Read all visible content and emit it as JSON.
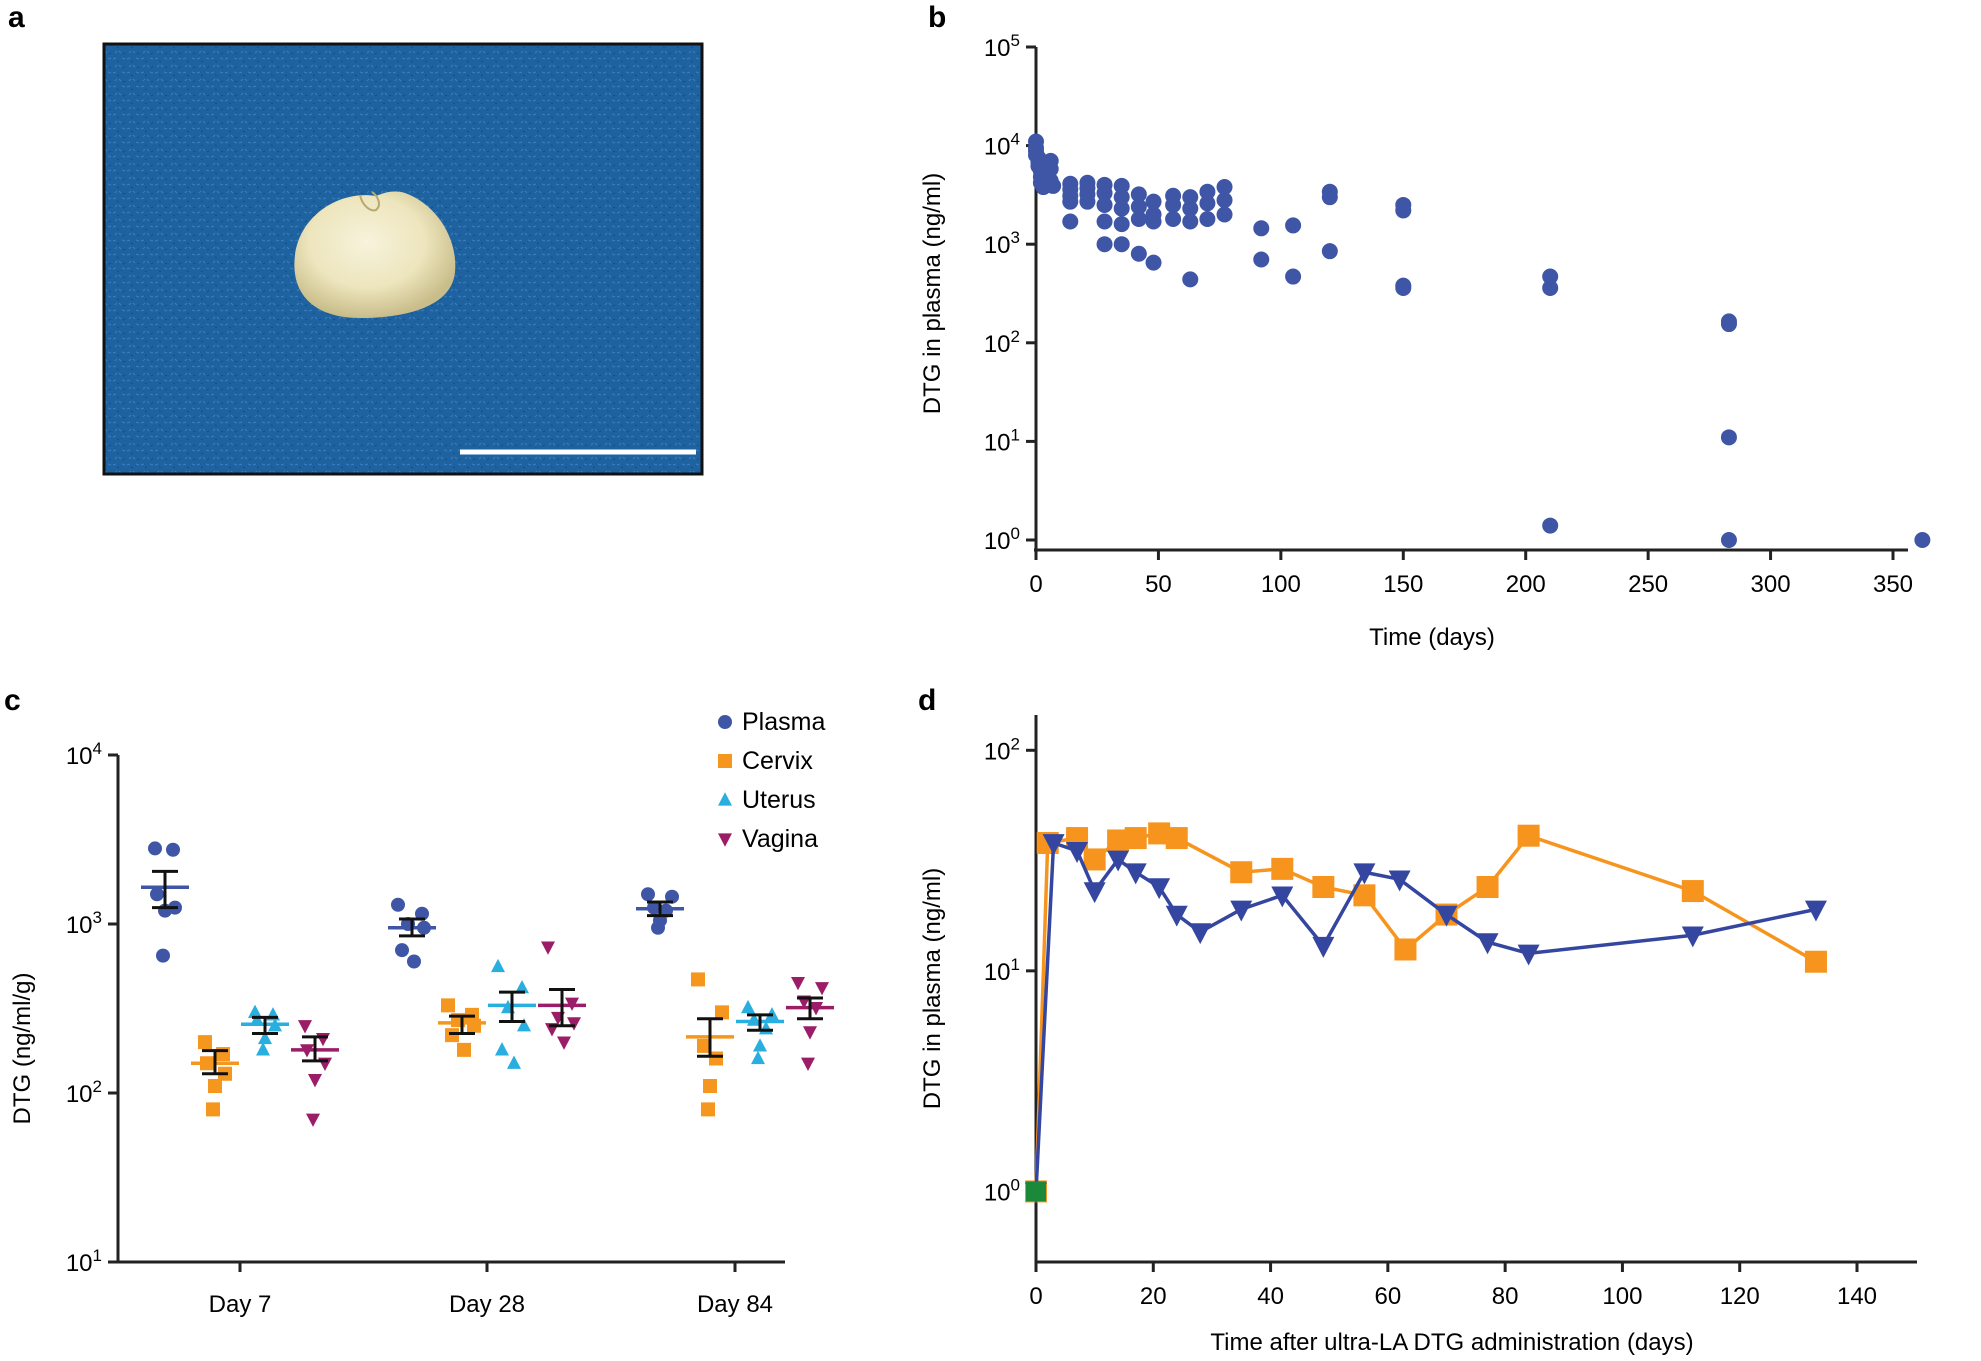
{
  "panel_labels": [
    "a",
    "b",
    "c",
    "d"
  ],
  "photo": {
    "description_name": "specimen-photo",
    "scale_bar": true
  },
  "colors": {
    "plasma": "#3f56a6",
    "cervix": "#f5961f",
    "uterus": "#29aee0",
    "vagina": "#9c1d67",
    "panel_d_orange": "#f7941d",
    "panel_d_blue": "#3446a0",
    "panel_d_start": "#1a8a3a",
    "photo_bg": "#1f62a0"
  },
  "chart_data": [
    {
      "panel": "b",
      "type": "scatter",
      "xlabel": "Time (days)",
      "ylabel": "DTG in plasma (ng/ml)",
      "xlim": [
        0,
        365
      ],
      "ylim_log10": [
        0,
        5
      ],
      "yscale": "log",
      "xticks": [
        "0",
        "50",
        "100",
        "150",
        "200",
        "250",
        "300",
        "350"
      ],
      "ytick_base": "10",
      "ytick_exps": [
        "0",
        "1",
        "2",
        "3",
        "4",
        "5"
      ],
      "points": [
        [
          0,
          11000
        ],
        [
          0,
          9500
        ],
        [
          0,
          8800
        ],
        [
          0,
          8000
        ],
        [
          1,
          7500
        ],
        [
          1,
          6800
        ],
        [
          1,
          6200
        ],
        [
          2,
          5500
        ],
        [
          2,
          4800
        ],
        [
          2,
          4200
        ],
        [
          3,
          3800
        ],
        [
          4,
          5200
        ],
        [
          5,
          4600
        ],
        [
          5,
          4000
        ],
        [
          6,
          7000
        ],
        [
          6,
          5800
        ],
        [
          6,
          4400
        ],
        [
          7,
          3900
        ],
        [
          14,
          4100
        ],
        [
          14,
          3600
        ],
        [
          14,
          3100
        ],
        [
          14,
          2700
        ],
        [
          14,
          1700
        ],
        [
          21,
          4200
        ],
        [
          21,
          3700
        ],
        [
          21,
          3200
        ],
        [
          21,
          2700
        ],
        [
          28,
          4000
        ],
        [
          28,
          3300
        ],
        [
          28,
          2500
        ],
        [
          28,
          1700
        ],
        [
          28,
          1000
        ],
        [
          35,
          3900
        ],
        [
          35,
          3000
        ],
        [
          35,
          2300
        ],
        [
          35,
          1600
        ],
        [
          35,
          1000
        ],
        [
          42,
          3200
        ],
        [
          42,
          2400
        ],
        [
          42,
          1800
        ],
        [
          42,
          800
        ],
        [
          48,
          2700
        ],
        [
          48,
          2000
        ],
        [
          48,
          1700
        ],
        [
          48,
          650
        ],
        [
          56,
          3100
        ],
        [
          56,
          2500
        ],
        [
          56,
          1800
        ],
        [
          63,
          3000
        ],
        [
          63,
          2300
        ],
        [
          63,
          1700
        ],
        [
          63,
          440
        ],
        [
          70,
          3400
        ],
        [
          70,
          2600
        ],
        [
          70,
          1800
        ],
        [
          77,
          3800
        ],
        [
          77,
          2800
        ],
        [
          77,
          2000
        ],
        [
          92,
          1450
        ],
        [
          92,
          700
        ],
        [
          105,
          1550
        ],
        [
          105,
          470
        ],
        [
          120,
          3400
        ],
        [
          120,
          3000
        ],
        [
          120,
          850
        ],
        [
          150,
          2500
        ],
        [
          150,
          2200
        ],
        [
          150,
          380
        ],
        [
          150,
          360
        ],
        [
          210,
          470
        ],
        [
          210,
          360
        ],
        [
          210,
          1.4
        ],
        [
          283,
          165
        ],
        [
          283,
          155
        ],
        [
          283,
          11
        ],
        [
          283,
          1.0
        ],
        [
          362,
          1.0
        ]
      ]
    },
    {
      "panel": "c",
      "type": "scatter",
      "xlabel": "",
      "ylabel": "DTG (ng/ml/g)",
      "yscale": "log",
      "ylim_log10": [
        1,
        4
      ],
      "categories": [
        "Day 7",
        "Day 28",
        "Day 84"
      ],
      "ytick_base": "10",
      "ytick_exps": [
        "1",
        "2",
        "3",
        "4"
      ],
      "legend": [
        "Plasma",
        "Cervix",
        "Uterus",
        "Vagina"
      ],
      "legend_position": "top-right",
      "series": [
        {
          "name": "Plasma",
          "marker": "circle",
          "groups": [
            {
              "values": [
                2800,
                2750,
                1500,
                1250,
                1200,
                650
              ],
              "mean": 1650,
              "sem_low": 1250,
              "sem_high": 2050
            },
            {
              "values": [
                1300,
                1150,
                1000,
                950,
                700,
                600
              ],
              "mean": 950,
              "sem_low": 850,
              "sem_high": 1070
            },
            {
              "values": [
                1500,
                1450,
                1250,
                1200,
                1050,
                950
              ],
              "mean": 1230,
              "sem_low": 1120,
              "sem_high": 1350
            }
          ]
        },
        {
          "name": "Cervix",
          "marker": "square",
          "groups": [
            {
              "values": [
                200,
                170,
                150,
                130,
                110,
                80
              ],
              "mean": 150,
              "sem_low": 130,
              "sem_high": 178
            },
            {
              "values": [
                330,
                290,
                270,
                250,
                220,
                180
              ],
              "mean": 260,
              "sem_low": 225,
              "sem_high": 285
            },
            {
              "values": [
                470,
                300,
                190,
                160,
                110,
                80
              ],
              "mean": 215,
              "sem_low": 165,
              "sem_high": 275
            }
          ]
        },
        {
          "name": "Uterus",
          "marker": "triangle-up",
          "groups": [
            {
              "values": [
                300,
                290,
                270,
                250,
                210,
                180
              ],
              "mean": 255,
              "sem_low": 225,
              "sem_high": 280
            },
            {
              "values": [
                560,
                420,
                320,
                250,
                180,
                150
              ],
              "mean": 330,
              "sem_low": 265,
              "sem_high": 395
            },
            {
              "values": [
                320,
                290,
                270,
                240,
                190,
                160
              ],
              "mean": 265,
              "sem_low": 235,
              "sem_high": 290
            }
          ]
        },
        {
          "name": "Vagina",
          "marker": "triangle-down",
          "groups": [
            {
              "values": [
                250,
                210,
                180,
                150,
                120,
                70
              ],
              "mean": 180,
              "sem_low": 155,
              "sem_high": 215
            },
            {
              "values": [
                730,
                340,
                280,
                260,
                240,
                200
              ],
              "mean": 330,
              "sem_low": 250,
              "sem_high": 410
            },
            {
              "values": [
                450,
                420,
                350,
                320,
                230,
                150
              ],
              "mean": 320,
              "sem_low": 275,
              "sem_high": 365
            }
          ]
        }
      ]
    },
    {
      "panel": "d",
      "type": "line",
      "xlabel": "Time after ultra-LA DTG administration (days)",
      "ylabel": "DTG in plasma (ng/ml)",
      "yscale": "log",
      "xlim": [
        0,
        150
      ],
      "ylim_log10": [
        -0.32,
        2.16
      ],
      "xticks": [
        "0",
        "20",
        "40",
        "60",
        "80",
        "100",
        "120",
        "140"
      ],
      "ytick_base": "10",
      "ytick_exps": [
        "0",
        "1",
        "2"
      ],
      "series": [
        {
          "name": "orange",
          "marker": "square",
          "x": [
            0,
            2,
            7,
            10,
            14,
            17,
            21,
            24,
            35,
            42,
            49,
            56,
            63,
            70,
            77,
            84,
            112,
            133
          ],
          "y": [
            1,
            38,
            40,
            32,
            39,
            40,
            42,
            40,
            28,
            29,
            24,
            22,
            12.5,
            18,
            24,
            41,
            23,
            11
          ]
        },
        {
          "name": "blue",
          "marker": "triangle-down",
          "x": [
            0,
            3,
            7,
            10,
            14,
            17,
            21,
            24,
            28,
            35,
            42,
            49,
            56,
            62,
            70,
            77,
            84,
            112,
            133
          ],
          "y": [
            1,
            38,
            35,
            23,
            32,
            28,
            24,
            18,
            15,
            19,
            22,
            13,
            28,
            26,
            18,
            13.5,
            12,
            14.5,
            19
          ]
        },
        {
          "name": "start",
          "marker": "square",
          "x": [
            0
          ],
          "y": [
            1
          ]
        }
      ]
    }
  ]
}
